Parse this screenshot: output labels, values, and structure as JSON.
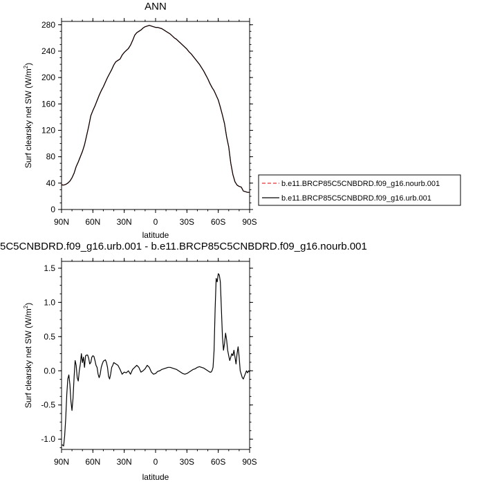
{
  "chart_data": [
    {
      "type": "line",
      "title": "ANN",
      "xlabel": "latitude",
      "ylabel": "Surf clearsky net SW (W/m",
      "ylabel_sup": "2",
      "ylabel_close": ")",
      "x_ticks": [
        90,
        60,
        30,
        0,
        -30,
        -60,
        -90
      ],
      "x_tick_labels": [
        "90N",
        "60N",
        "30N",
        "0",
        "30S",
        "60S",
        "90S"
      ],
      "xlim": [
        90,
        -90
      ],
      "ylim": [
        0,
        285
      ],
      "y_ticks": [
        0,
        40,
        80,
        120,
        160,
        200,
        240,
        280
      ],
      "y_tick_labels": [
        "0",
        "40",
        "80",
        "120",
        "160",
        "200",
        "240",
        "280"
      ],
      "legend": {
        "placement": "right",
        "entries": [
          {
            "label": "b.e11.BRCP85C5CNBDRD.f09_g16.nourb.001",
            "color": "#f05050",
            "dash": true
          },
          {
            "label": "b.e11.BRCP85C5CNBDRD.f09_g16.urb.001",
            "color": "#000000",
            "dash": false
          }
        ]
      },
      "series": [
        {
          "name": "b.e11.BRCP85C5CNBDRD.f09_g16.nourb.001",
          "color": "#e03030",
          "x": [
            90,
            88,
            86,
            84,
            82,
            80,
            78,
            76,
            74,
            72,
            70,
            68,
            66,
            64,
            62,
            60,
            58,
            56,
            54,
            52,
            50,
            48,
            46,
            44,
            42,
            40,
            38,
            36,
            34,
            32,
            30,
            28,
            26,
            24,
            22,
            20,
            18,
            16,
            14,
            12,
            10,
            8,
            6,
            4,
            2,
            0,
            -2,
            -4,
            -6,
            -8,
            -10,
            -12,
            -14,
            -16,
            -18,
            -20,
            -22,
            -24,
            -26,
            -28,
            -30,
            -32,
            -34,
            -36,
            -38,
            -40,
            -42,
            -44,
            -46,
            -48,
            -50,
            -52,
            -54,
            -56,
            -58,
            -60,
            -62,
            -64,
            -66,
            -68,
            -70,
            -72,
            -74,
            -76,
            -78,
            -80,
            -82,
            -84,
            -86,
            -88,
            -90
          ],
          "y": [
            38,
            37,
            38,
            40,
            43,
            48,
            55,
            65,
            72,
            80,
            88,
            98,
            112,
            126,
            142,
            150,
            157,
            165,
            173,
            180,
            186,
            193,
            200,
            206,
            212,
            219,
            224,
            226,
            228,
            234,
            238,
            241,
            244,
            249,
            256,
            264,
            268,
            270,
            272,
            275,
            277,
            278,
            279,
            278,
            277,
            276,
            276,
            275,
            274,
            272,
            270,
            268,
            266,
            263,
            260,
            258,
            255,
            252,
            249,
            246,
            243,
            239,
            236,
            232,
            228,
            224,
            220,
            215,
            210,
            204,
            198,
            191,
            185,
            180,
            173,
            166,
            155,
            143,
            130,
            110,
            95,
            70,
            53,
            42,
            37,
            35,
            34,
            28,
            27,
            26,
            26
          ]
        },
        {
          "name": "b.e11.BRCP85C5CNBDRD.f09_g16.urb.001",
          "color": "#000000",
          "x": [
            90,
            88,
            86,
            84,
            82,
            80,
            78,
            76,
            74,
            72,
            70,
            68,
            66,
            64,
            62,
            60,
            58,
            56,
            54,
            52,
            50,
            48,
            46,
            44,
            42,
            40,
            38,
            36,
            34,
            32,
            30,
            28,
            26,
            24,
            22,
            20,
            18,
            16,
            14,
            12,
            10,
            8,
            6,
            4,
            2,
            0,
            -2,
            -4,
            -6,
            -8,
            -10,
            -12,
            -14,
            -16,
            -18,
            -20,
            -22,
            -24,
            -26,
            -28,
            -30,
            -32,
            -34,
            -36,
            -38,
            -40,
            -42,
            -44,
            -46,
            -48,
            -50,
            -52,
            -54,
            -56,
            -58,
            -60,
            -62,
            -64,
            -66,
            -68,
            -70,
            -72,
            -74,
            -76,
            -78,
            -80,
            -82,
            -84,
            -86,
            -88,
            -90
          ],
          "y": [
            37,
            37,
            38,
            40,
            43,
            48,
            55,
            65,
            72,
            80,
            88,
            98,
            112,
            126,
            142,
            150,
            157,
            165,
            173,
            180,
            186,
            193,
            200,
            206,
            212,
            219,
            224,
            226,
            228,
            234,
            238,
            241,
            244,
            249,
            256,
            264,
            268,
            270,
            272,
            275,
            277,
            278,
            279,
            278,
            277,
            276,
            276,
            275,
            274,
            272,
            270,
            268,
            266,
            263,
            260,
            258,
            255,
            252,
            249,
            246,
            243,
            239,
            236,
            232,
            228,
            224,
            220,
            215,
            210,
            204,
            198,
            191,
            185,
            180,
            173,
            166,
            155,
            143,
            130,
            110,
            95,
            70,
            53,
            42,
            37,
            35,
            34,
            28,
            27,
            26,
            26
          ]
        }
      ]
    },
    {
      "type": "line",
      "title": "5C5CNBDRD.f09_g16.urb.001 - b.e11.BRCP85C5CNBDRD.f09_g16.nourb.001",
      "xlabel": "latitude",
      "ylabel": "Surf clearsky net SW (W/m",
      "ylabel_sup": "2",
      "ylabel_close": ")",
      "x_ticks": [
        90,
        60,
        30,
        0,
        -30,
        -60,
        -90
      ],
      "x_tick_labels": [
        "90N",
        "60N",
        "30N",
        "0",
        "30S",
        "60S",
        "90S"
      ],
      "xlim": [
        90,
        -90
      ],
      "ylim": [
        -1.15,
        1.6
      ],
      "y_ticks": [
        -1.0,
        -0.5,
        0.0,
        0.5,
        1.0,
        1.5
      ],
      "y_tick_labels": [
        "-1.0",
        "-0.5",
        "0.0",
        "0.5",
        "1.0",
        "1.5"
      ],
      "series": [
        {
          "color": "#000000",
          "x": [
            89.5,
            88,
            87,
            86,
            85,
            84,
            83,
            82,
            81,
            80,
            79,
            78,
            77,
            76,
            75,
            74,
            73,
            72,
            71,
            70,
            69,
            68,
            67,
            66,
            65,
            64,
            63,
            62,
            61,
            60,
            59,
            58,
            57,
            56,
            55,
            54,
            53,
            52,
            51,
            50,
            49,
            48,
            47,
            46,
            45,
            44,
            43,
            42,
            41,
            40,
            38,
            36,
            34,
            32,
            30,
            28,
            26,
            24,
            22,
            20,
            18,
            16,
            14,
            12,
            10,
            8,
            6,
            4,
            2,
            0,
            -2,
            -4,
            -6,
            -8,
            -10,
            -12,
            -14,
            -16,
            -18,
            -20,
            -22,
            -24,
            -26,
            -28,
            -30,
            -32,
            -34,
            -36,
            -38,
            -40,
            -42,
            -44,
            -46,
            -48,
            -50,
            -52,
            -53,
            -54,
            -55,
            -56,
            -57,
            -58,
            -59,
            -60,
            -61,
            -62,
            -63,
            -64,
            -65,
            -66,
            -67,
            -68,
            -69,
            -70,
            -71,
            -72,
            -73,
            -74,
            -75,
            -76,
            -77,
            -78,
            -79,
            -80,
            -81,
            -82,
            -83,
            -84,
            -85,
            -86,
            -87,
            -88,
            -89,
            -90
          ],
          "y": [
            -1.08,
            -1.1,
            -0.95,
            -0.7,
            -0.35,
            -0.12,
            -0.06,
            -0.2,
            -0.45,
            -0.58,
            -0.4,
            -0.1,
            0.15,
            0.08,
            -0.1,
            -0.15,
            0.0,
            0.1,
            0.25,
            0.12,
            0.2,
            0.05,
            0.22,
            0.23,
            0.23,
            0.18,
            0.1,
            0.12,
            0.2,
            0.22,
            0.21,
            0.15,
            0.08,
            0.05,
            -0.05,
            -0.1,
            -0.05,
            0.05,
            0.1,
            0.14,
            0.15,
            0.16,
            0.12,
            0.05,
            -0.08,
            -0.12,
            -0.05,
            0.05,
            0.08,
            0.12,
            0.1,
            0.08,
            0.02,
            -0.05,
            -0.02,
            -0.03,
            0.0,
            -0.05,
            0.02,
            0.05,
            0.08,
            0.05,
            -0.02,
            0.0,
            0.03,
            0.08,
            0.05,
            -0.02,
            -0.05,
            -0.04,
            -0.01,
            0.0,
            0.02,
            0.03,
            0.04,
            0.05,
            0.05,
            0.04,
            0.03,
            0.02,
            0.0,
            -0.02,
            -0.04,
            -0.05,
            -0.04,
            -0.02,
            0.0,
            0.02,
            0.03,
            0.05,
            0.06,
            0.05,
            0.04,
            0.02,
            0.0,
            -0.02,
            -0.02,
            0.0,
            0.05,
            0.3,
            0.9,
            1.35,
            1.3,
            1.42,
            1.4,
            1.3,
            0.9,
            0.5,
            0.3,
            0.4,
            0.55,
            0.45,
            0.3,
            0.22,
            0.15,
            0.2,
            0.25,
            0.22,
            0.3,
            0.2,
            0.1,
            0.25,
            0.35,
            0.2,
            0.0,
            -0.05,
            -0.1,
            -0.12,
            -0.08,
            -0.04,
            0.0,
            -0.03,
            0.0,
            -0.02
          ]
        }
      ]
    }
  ]
}
